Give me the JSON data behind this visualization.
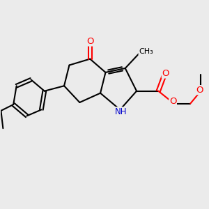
{
  "bg_color": "#ebebeb",
  "bond_color": "#000000",
  "bond_width": 1.5,
  "atom_colors": {
    "O": "#ff0000",
    "N": "#0000cc",
    "C": "#000000"
  },
  "font_size": 8.5,
  "figsize": [
    3.0,
    3.0
  ],
  "dpi": 100
}
